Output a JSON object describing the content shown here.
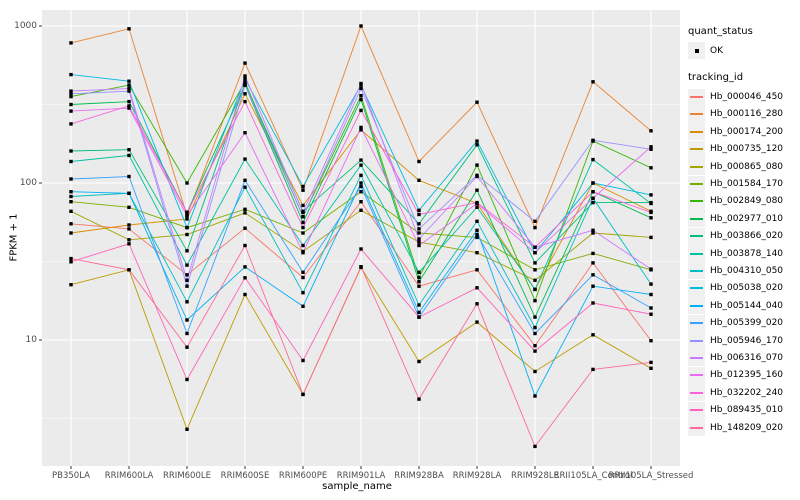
{
  "axes": {
    "x_label": "sample_name",
    "y_label": "FPKM + 1"
  },
  "legend": {
    "quant_status_title": "quant_status",
    "quant_status_ok": "OK",
    "tracking_id_title": "tracking_id"
  },
  "style": {
    "panel_bg": "#ebebeb",
    "grid_color": "#ffffff",
    "point_color": "#000000",
    "tick_color": "#333333",
    "tick_label_color": "#4d4d4d",
    "legend_key_bg": "#f0f0f0"
  },
  "chart_data": {
    "type": "line",
    "title": "",
    "xlabel": "sample_name",
    "ylabel": "FPKM + 1",
    "yscale": "log10",
    "ylim": [
      1.6,
      1265
    ],
    "yticks": [
      10,
      100,
      1000
    ],
    "grid": true,
    "legend_position": "right",
    "x": [
      "PB350LA",
      "RRIM600LA",
      "RRIM600LE",
      "RRIM600SE",
      "RRIM600PE",
      "RRIM901LA",
      "RRIM928BA",
      "RRIM928LA",
      "RRIM928LE",
      "RRII105LA_Control",
      "RRII105LA_Stressed"
    ],
    "quant_status": "OK",
    "series": [
      {
        "name": "Hb_000046_450",
        "color": "#F8766D",
        "values": [
          55,
          51,
          26,
          51.5,
          25,
          76,
          22,
          28,
          9.2,
          31,
          9.9
        ]
      },
      {
        "name": "Hb_000116_280",
        "color": "#EA8331",
        "values": [
          780,
          960,
          62,
          580,
          90,
          1000,
          137,
          327,
          52,
          441,
          215
        ]
      },
      {
        "name": "Hb_000174_200",
        "color": "#D89000",
        "values": [
          48,
          54,
          59,
          370,
          72,
          218,
          104,
          74,
          21,
          100,
          66
        ]
      },
      {
        "name": "Hb_000735_120",
        "color": "#C09B00",
        "values": [
          22.5,
          28,
          2.7,
          19.5,
          4.5,
          29,
          7.3,
          13,
          6.3,
          10.8,
          6.6
        ]
      },
      {
        "name": "Hb_000865_080",
        "color": "#A3A500",
        "values": [
          66,
          43.5,
          47,
          64.5,
          36.6,
          67,
          42,
          36,
          24,
          48,
          45
        ]
      },
      {
        "name": "Hb_001584_170",
        "color": "#7CAE00",
        "values": [
          76,
          70,
          52,
          68,
          48,
          88,
          48,
          45,
          28,
          35.6,
          28
        ]
      },
      {
        "name": "Hb_002849_080",
        "color": "#39B600",
        "values": [
          355,
          420,
          100,
          440,
          61,
          360,
          25,
          130,
          17.8,
          185,
          125
        ]
      },
      {
        "name": "Hb_002977_010",
        "color": "#00BB4E",
        "values": [
          316,
          330,
          65,
          420,
          56,
          340,
          23.5,
          90,
          14,
          88,
          60
        ]
      },
      {
        "name": "Hb_003866_020",
        "color": "#00BF7D",
        "values": [
          160,
          163,
          37,
          430,
          66,
          140,
          55,
          175,
          31,
          75,
          75
        ]
      },
      {
        "name": "Hb_003878_140",
        "color": "#00C1A3",
        "values": [
          137,
          150,
          30,
          142,
          40,
          130,
          27,
          70,
          21,
          141,
          74
        ]
      },
      {
        "name": "Hb_004310_050",
        "color": "#00BFC4",
        "values": [
          82,
          86,
          17.5,
          94,
          20,
          112,
          16.7,
          57,
          12,
          80,
          22.7
        ]
      },
      {
        "name": "Hb_005038_020",
        "color": "#00BAE0",
        "values": [
          490,
          445,
          52,
          460,
          95,
          420,
          67,
          185,
          36,
          100,
          84
        ]
      },
      {
        "name": "Hb_005144_040",
        "color": "#00B0F6",
        "values": [
          88,
          86,
          13.4,
          29.2,
          16.4,
          100,
          15,
          50,
          4.4,
          22,
          19.5
        ]
      },
      {
        "name": "Hb_005399_020",
        "color": "#35A2FF",
        "values": [
          106,
          110,
          11,
          104,
          27,
          95,
          14,
          47,
          11,
          26,
          16
        ]
      },
      {
        "name": "Hb_005946_170",
        "color": "#9590FF",
        "values": [
          370,
          385,
          22,
          420,
          61,
          400,
          51,
          112,
          57,
          187,
          164
        ]
      },
      {
        "name": "Hb_006316_070",
        "color": "#C77CFF",
        "values": [
          385,
          400,
          24,
          480,
          65,
          430,
          44,
          110,
          39,
          50,
          28.3
        ]
      },
      {
        "name": "Hb_012395_160",
        "color": "#E76BF3",
        "values": [
          287,
          300,
          62,
          209,
          36,
          226,
          40,
          74,
          36,
          80,
          170
        ]
      },
      {
        "name": "Hb_032202_240",
        "color": "#FA62DB",
        "values": [
          238,
          310,
          65,
          330,
          52,
          290,
          63,
          75,
          39,
          88,
          65
        ]
      },
      {
        "name": "Hb_089435_010",
        "color": "#FF62BC",
        "values": [
          31.5,
          41,
          5.6,
          24.9,
          7.4,
          38,
          14,
          21.5,
          8.5,
          17.2,
          14.6
        ]
      },
      {
        "name": "Hb_148209_020",
        "color": "#FF6A98",
        "values": [
          33,
          28,
          9,
          40,
          4.5,
          29.3,
          4.2,
          17,
          2.1,
          6.5,
          7.2
        ]
      }
    ]
  }
}
